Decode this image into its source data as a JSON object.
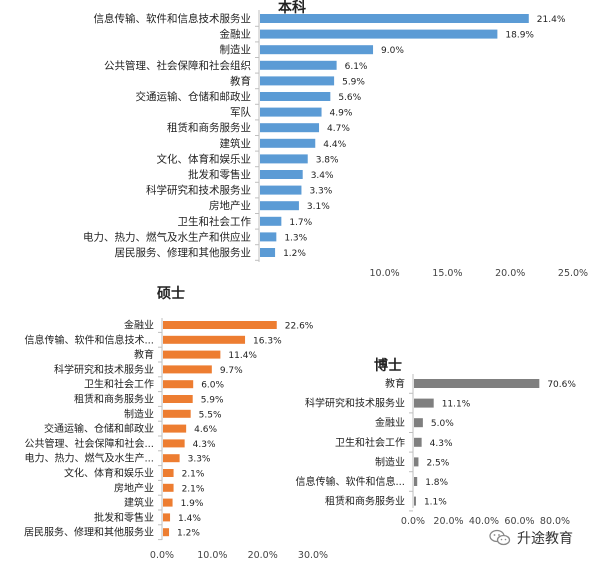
{
  "chart_data": [
    {
      "type": "bar",
      "orientation": "horizontal",
      "title": "本科",
      "color": "#5B9BD5",
      "categories": [
        "信息传输、软件和信息技术服务业",
        "金融业",
        "制造业",
        "公共管理、社会保障和社会组织",
        "教育",
        "交通运输、仓储和邮政业",
        "军队",
        "租赁和商务服务业",
        "建筑业",
        "文化、体育和娱乐业",
        "批发和零售业",
        "科学研究和技术服务业",
        "房地产业",
        "卫生和社会工作",
        "电力、热力、燃气及水生产和供应业",
        "居民服务、修理和其他服务业"
      ],
      "values": [
        21.4,
        18.9,
        9.0,
        6.1,
        5.9,
        5.6,
        4.9,
        4.7,
        4.4,
        3.8,
        3.4,
        3.3,
        3.1,
        1.7,
        1.3,
        1.2
      ],
      "value_labels": [
        "21.4%",
        "18.9%",
        "9.0%",
        "6.1%",
        "5.9%",
        "5.6%",
        "4.9%",
        "4.7%",
        "4.4%",
        "3.8%",
        "3.4%",
        "3.3%",
        "3.1%",
        "1.7%",
        "1.3%",
        "1.2%"
      ],
      "xlim": [
        0,
        25
      ],
      "x_ticks": [
        10,
        15,
        20,
        25
      ],
      "x_tick_labels": [
        "10.0%",
        "15.0%",
        "20.0%",
        "25.0%"
      ],
      "grid": false
    },
    {
      "type": "bar",
      "orientation": "horizontal",
      "title": "硕士",
      "color": "#ED7D31",
      "categories": [
        "金融业",
        "信息传输、软件和信息技术...",
        "教育",
        "科学研究和技术服务业",
        "卫生和社会工作",
        "租赁和商务服务业",
        "制造业",
        "交通运输、仓储和邮政业",
        "公共管理、社会保障和社会...",
        "电力、热力、燃气及水生产...",
        "文化、体育和娱乐业",
        "房地产业",
        "建筑业",
        "批发和零售业",
        "居民服务、修理和其他服务业"
      ],
      "values": [
        22.6,
        16.3,
        11.4,
        9.7,
        6.0,
        5.9,
        5.5,
        4.6,
        4.3,
        3.3,
        2.1,
        2.1,
        1.9,
        1.4,
        1.2
      ],
      "value_labels": [
        "22.6%",
        "16.3%",
        "11.4%",
        "9.7%",
        "6.0%",
        "5.9%",
        "5.5%",
        "4.6%",
        "4.3%",
        "3.3%",
        "2.1%",
        "2.1%",
        "1.9%",
        "1.4%",
        "1.2%"
      ],
      "xlim": [
        0,
        30
      ],
      "x_ticks": [
        0,
        10,
        20,
        30
      ],
      "x_tick_labels": [
        "0.0%",
        "10.0%",
        "20.0%",
        "30.0%"
      ],
      "grid": false
    },
    {
      "type": "bar",
      "orientation": "horizontal",
      "title": "博士",
      "color": "#7F7F7F",
      "categories": [
        "教育",
        "科学研究和技术服务业",
        "金融业",
        "卫生和社会工作",
        "制造业",
        "信息传输、软件和信息...",
        "租赁和商务服务业"
      ],
      "values": [
        70.6,
        11.1,
        5.0,
        4.3,
        2.5,
        1.8,
        1.1
      ],
      "value_labels": [
        "70.6%",
        "11.1%",
        "5.0%",
        "4.3%",
        "2.5%",
        "1.8%",
        "1.1%"
      ],
      "xlim": [
        0,
        80
      ],
      "x_ticks": [
        0,
        20,
        40,
        60,
        80
      ],
      "x_tick_labels": [
        "0.0%",
        "20.0%",
        "40.0%",
        "60.0%",
        "80.0%"
      ],
      "grid": false
    }
  ],
  "watermark": {
    "text": "升途教育",
    "icon": "wechat-icon"
  }
}
